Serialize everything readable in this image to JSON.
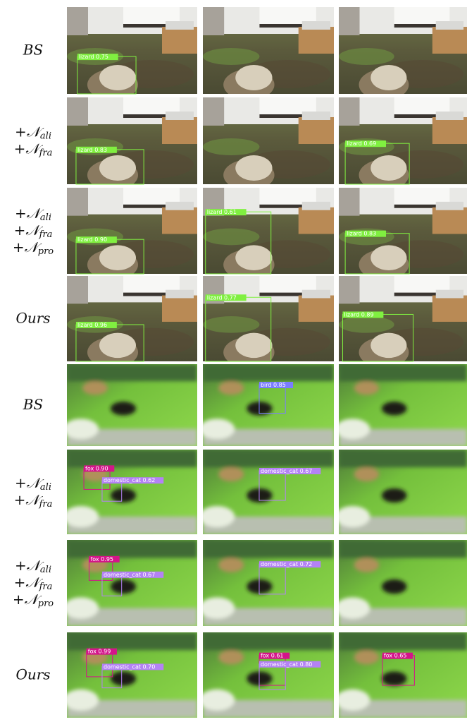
{
  "groups": [
    {
      "rows": [
        {
          "label": [
            {
              "base": "BS"
            }
          ],
          "cells": [
            {
              "detections": [
                {
                  "label": "lizard 0.75",
                  "color": "#80f040"
                }
              ]
            },
            {
              "detections": []
            },
            {
              "detections": []
            }
          ]
        },
        {
          "label": [
            {
              "base": "+𝒩",
              "sub": "ali"
            },
            {
              "base": "+𝒩",
              "sub": "fra"
            }
          ],
          "cells": [
            {
              "detections": [
                {
                  "label": "lizard 0.83",
                  "color": "#80f040"
                }
              ]
            },
            {
              "detections": []
            },
            {
              "detections": [
                {
                  "label": "lizard 0.69",
                  "color": "#80f040"
                }
              ]
            }
          ]
        },
        {
          "label": [
            {
              "base": "+𝒩",
              "sub": "ali"
            },
            {
              "base": "+𝒩",
              "sub": "fra"
            },
            {
              "base": "+𝒩",
              "sub": "pro"
            }
          ],
          "cells": [
            {
              "detections": [
                {
                  "label": "lizard 0.90",
                  "color": "#80f040"
                }
              ]
            },
            {
              "detections": [
                {
                  "label": "lizard 0.61",
                  "color": "#80f040"
                }
              ]
            },
            {
              "detections": [
                {
                  "label": "lizard 0.83",
                  "color": "#80f040"
                }
              ]
            }
          ]
        },
        {
          "label": [
            {
              "base": "Ours"
            }
          ],
          "cells": [
            {
              "detections": [
                {
                  "label": "lizard 0.96",
                  "color": "#80f040"
                }
              ]
            },
            {
              "detections": [
                {
                  "label": "lizard 0.77",
                  "color": "#80f040"
                }
              ]
            },
            {
              "detections": [
                {
                  "label": "lizard 0.89",
                  "color": "#80f040"
                }
              ]
            }
          ]
        }
      ]
    },
    {
      "rows": [
        {
          "label": [
            {
              "base": "BS"
            }
          ],
          "cells": [
            {
              "detections": []
            },
            {
              "detections": [
                {
                  "label": "bird 0.85",
                  "color": "#7a7cff"
                }
              ]
            },
            {
              "detections": []
            }
          ]
        },
        {
          "label": [
            {
              "base": "+𝒩",
              "sub": "ali"
            },
            {
              "base": "+𝒩",
              "sub": "fra"
            }
          ],
          "cells": [
            {
              "detections": [
                {
                  "label": "fox 0.90",
                  "color": "#d4148a"
                },
                {
                  "label": "domestic_cat 0.62",
                  "color": "#b482f5"
                }
              ]
            },
            {
              "detections": [
                {
                  "label": "domestic_cat 0.67",
                  "color": "#b482f5"
                }
              ]
            },
            {
              "detections": []
            }
          ]
        },
        {
          "label": [
            {
              "base": "+𝒩",
              "sub": "ali"
            },
            {
              "base": "+𝒩",
              "sub": "fra"
            },
            {
              "base": "+𝒩",
              "sub": "pro"
            }
          ],
          "cells": [
            {
              "detections": [
                {
                  "label": "fox 0.95",
                  "color": "#d4148a"
                },
                {
                  "label": "domestic_cat 0.67",
                  "color": "#b482f5"
                }
              ]
            },
            {
              "detections": [
                {
                  "label": "domestic_cat 0.72",
                  "color": "#b482f5"
                }
              ]
            },
            {
              "detections": []
            }
          ]
        },
        {
          "label": [
            {
              "base": "Ours"
            }
          ],
          "cells": [
            {
              "detections": [
                {
                  "label": "fox 0.99",
                  "color": "#d4148a"
                },
                {
                  "label": "domestic_cat 0.70",
                  "color": "#b482f5"
                }
              ]
            },
            {
              "detections": [
                {
                  "label": "fox 0.61",
                  "color": "#d4148a"
                },
                {
                  "label": "domestic_cat 0.80",
                  "color": "#b482f5"
                }
              ]
            },
            {
              "detections": [
                {
                  "label": "fox 0.65",
                  "color": "#d4148a"
                }
              ]
            }
          ]
        }
      ]
    }
  ]
}
